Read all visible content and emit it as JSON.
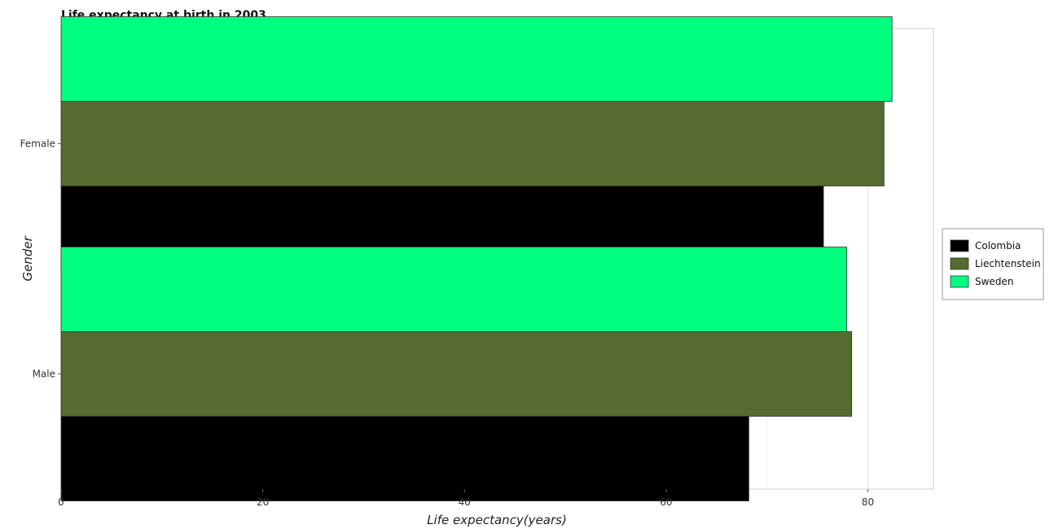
{
  "chart_data": {
    "type": "bar",
    "orientation": "horizontal",
    "title": "Life expectancy at birth in 2003",
    "xlabel": "Life expectancy(years)",
    "ylabel": "Gender",
    "categories": [
      "Female",
      "Male"
    ],
    "series": [
      {
        "name": "Colombia",
        "color": "#000000",
        "values": [
          75.6,
          68.2
        ]
      },
      {
        "name": "Liechtenstein",
        "color": "#556b2f",
        "values": [
          81.6,
          78.4
        ]
      },
      {
        "name": "Sweden",
        "color": "#00ff7f",
        "values": [
          82.4,
          77.9
        ]
      }
    ],
    "xticks": [
      0,
      20,
      40,
      60,
      80
    ],
    "xlim": [
      0,
      86.5
    ],
    "grid": true,
    "legend_position": "right"
  }
}
